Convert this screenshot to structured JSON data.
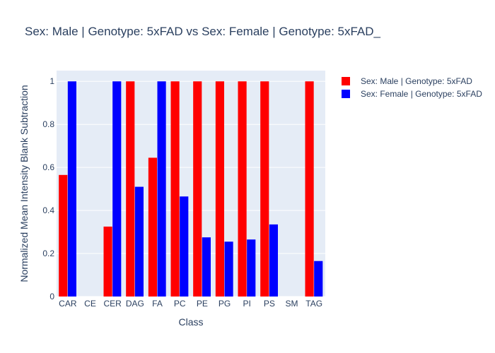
{
  "chart_data": {
    "type": "bar",
    "title": "Sex: Male | Genotype: 5xFAD vs Sex: Female | Genotype: 5xFAD_",
    "xlabel": "Class",
    "ylabel": "Normalized Mean Intensity Blank Subtraction",
    "ylim": [
      0,
      1.05
    ],
    "yticks": [
      0,
      0.2,
      0.4,
      0.6,
      0.8,
      1
    ],
    "ytick_labels": [
      "0",
      "0.2",
      "0.4",
      "0.6",
      "0.8",
      "1"
    ],
    "grid": true,
    "legend_position": "top-right",
    "categories": [
      "CAR",
      "CE",
      "CER",
      "DAG",
      "FA",
      "PC",
      "PE",
      "PG",
      "PI",
      "PS",
      "SM",
      "TAG"
    ],
    "series": [
      {
        "name": "Sex: Male | Genotype: 5xFAD",
        "color": "#ff0000",
        "values": [
          0.565,
          0,
          0.325,
          1,
          0.645,
          1,
          1,
          1,
          1,
          1,
          0,
          1
        ]
      },
      {
        "name": "Sex: Female | Genotype: 5xFAD",
        "color": "#0000ff",
        "values": [
          1,
          0,
          1,
          0.51,
          1,
          0.465,
          0.275,
          0.255,
          0.265,
          0.335,
          0,
          0.165
        ]
      }
    ],
    "plot_background": "#e5ecf6",
    "grid_color": "#ffffff"
  }
}
